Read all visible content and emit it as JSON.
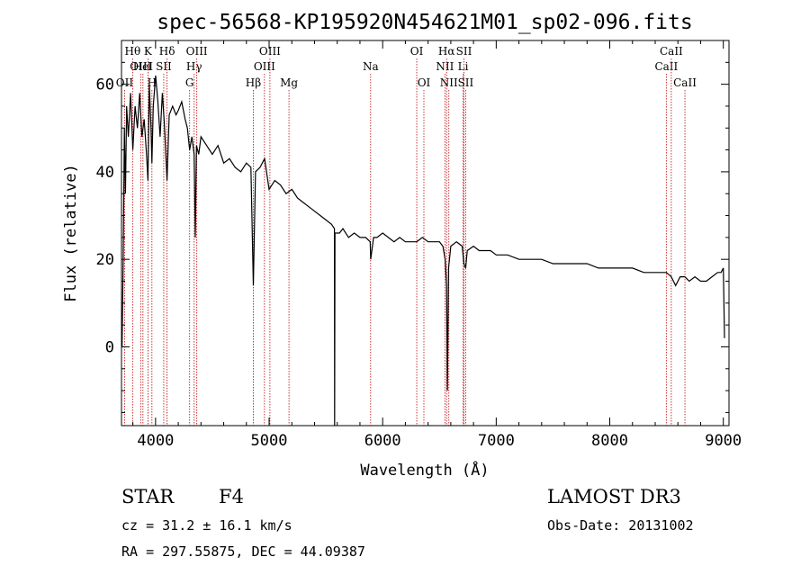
{
  "chart_data": {
    "type": "line",
    "title": "spec-56568-KP195920N454621M01_sp02-096.fits",
    "xlabel": "Wavelength (Å)",
    "ylabel": "Flux (relative)",
    "xlim": [
      3700,
      9050
    ],
    "ylim": [
      -18,
      70
    ],
    "x_ticks": [
      4000,
      5000,
      6000,
      7000,
      8000,
      9000
    ],
    "x_tick_labels": [
      "4000",
      "5000",
      "6000",
      "7000",
      "8000",
      "9000"
    ],
    "y_ticks": [
      0,
      20,
      40,
      60
    ],
    "y_tick_labels": [
      "0",
      "20",
      "40",
      "60"
    ],
    "grid": false,
    "series": [
      {
        "name": "spectrum",
        "x": [
          3705,
          3715,
          3725,
          3735,
          3745,
          3760,
          3780,
          3800,
          3820,
          3840,
          3860,
          3880,
          3900,
          3920,
          3933,
          3945,
          3960,
          3968,
          3980,
          4000,
          4020,
          4040,
          4060,
          4080,
          4101,
          4120,
          4150,
          4180,
          4200,
          4230,
          4260,
          4280,
          4300,
          4320,
          4340,
          4350,
          4360,
          4380,
          4400,
          4450,
          4500,
          4550,
          4600,
          4650,
          4700,
          4750,
          4800,
          4840,
          4861,
          4880,
          4920,
          4960,
          5000,
          5050,
          5100,
          5150,
          5200,
          5250,
          5300,
          5350,
          5400,
          5450,
          5500,
          5550,
          5575,
          5577,
          5580,
          5620,
          5650,
          5700,
          5750,
          5800,
          5850,
          5890,
          5895,
          5920,
          5950,
          6000,
          6050,
          6100,
          6150,
          6200,
          6250,
          6300,
          6350,
          6400,
          6450,
          6500,
          6530,
          6550,
          6563,
          6570,
          6580,
          6600,
          6650,
          6700,
          6716,
          6731,
          6745,
          6800,
          6850,
          6900,
          6950,
          7000,
          7100,
          7200,
          7300,
          7400,
          7500,
          7600,
          7700,
          7800,
          7900,
          8000,
          8100,
          8200,
          8300,
          8400,
          8498,
          8542,
          8580,
          8620,
          8662,
          8700,
          8750,
          8800,
          8850,
          8900,
          8950,
          8980,
          9000,
          9010
        ],
        "y": [
          0,
          20,
          50,
          35,
          55,
          48,
          58,
          45,
          55,
          50,
          58,
          48,
          52,
          44,
          38,
          60,
          50,
          42,
          55,
          62,
          56,
          48,
          58,
          50,
          38,
          53,
          55,
          53,
          54,
          56,
          52,
          50,
          45,
          48,
          44,
          25,
          46,
          44,
          48,
          46,
          44,
          46,
          42,
          43,
          41,
          40,
          42,
          41,
          14,
          40,
          41,
          43,
          36,
          38,
          37,
          35,
          36,
          34,
          33,
          32,
          31,
          30,
          29,
          28,
          27,
          -18,
          26,
          26,
          27,
          25,
          26,
          25,
          25,
          24,
          20,
          25,
          25,
          26,
          25,
          24,
          25,
          24,
          24,
          24,
          25,
          24,
          24,
          24,
          23,
          20,
          14,
          -10,
          18,
          23,
          24,
          23,
          19,
          18,
          22,
          23,
          22,
          22,
          22,
          21,
          21,
          20,
          20,
          20,
          19,
          19,
          19,
          19,
          18,
          18,
          18,
          18,
          17,
          17,
          17,
          16,
          14,
          16,
          16,
          15,
          16,
          15,
          15,
          16,
          17,
          17,
          18,
          2
        ]
      }
    ],
    "lines": [
      {
        "name": "OII",
        "wavelength": 3727,
        "row": 3
      },
      {
        "name": "Hθ",
        "wavelength": 3798,
        "row": 1
      },
      {
        "name": "OIII",
        "wavelength": 3869,
        "row": 2
      },
      {
        "name": "HeI",
        "wavelength": 3889,
        "row": 2
      },
      {
        "name": "K",
        "wavelength": 3933,
        "row": 1
      },
      {
        "name": "H",
        "wavelength": 3968,
        "row": 3
      },
      {
        "name": "SII",
        "wavelength": 4072,
        "row": 2
      },
      {
        "name": "Hδ",
        "wavelength": 4101,
        "row": 1
      },
      {
        "name": "G",
        "wavelength": 4300,
        "row": 3
      },
      {
        "name": "Hγ",
        "wavelength": 4340,
        "row": 2
      },
      {
        "name": "OIII",
        "wavelength": 4363,
        "row": 1
      },
      {
        "name": "Hβ",
        "wavelength": 4861,
        "row": 3
      },
      {
        "name": "OIII",
        "wavelength": 4959,
        "row": 2
      },
      {
        "name": "OIII",
        "wavelength": 5007,
        "row": 1
      },
      {
        "name": "Mg",
        "wavelength": 5175,
        "row": 3
      },
      {
        "name": "Na",
        "wavelength": 5894,
        "row": 2
      },
      {
        "name": "OI",
        "wavelength": 6300,
        "row": 1
      },
      {
        "name": "OI",
        "wavelength": 6363,
        "row": 3
      },
      {
        "name": "NII",
        "wavelength": 6548,
        "row": 2
      },
      {
        "name": "Hα",
        "wavelength": 6563,
        "row": 1
      },
      {
        "name": "NII",
        "wavelength": 6583,
        "row": 3
      },
      {
        "name": "Li",
        "wavelength": 6708,
        "row": 2
      },
      {
        "name": "SII",
        "wavelength": 6716,
        "row": 1
      },
      {
        "name": "SII",
        "wavelength": 6731,
        "row": 3
      },
      {
        "name": "CaII",
        "wavelength": 8498,
        "row": 2
      },
      {
        "name": "CaII",
        "wavelength": 8542,
        "row": 1
      },
      {
        "name": "CaII",
        "wavelength": 8662,
        "row": 3
      }
    ],
    "colors": {
      "spectrum": "#000000",
      "lines": "#c00000",
      "axes": "#000000"
    }
  },
  "info": {
    "object_class": "STAR",
    "subclass": "F4",
    "survey": "LAMOST DR3",
    "cz": "cz = 31.2 ± 16.1 km/s",
    "obs_date": "Obs-Date: 20131002",
    "coords": "RA = 297.55875, DEC =  44.09387"
  }
}
